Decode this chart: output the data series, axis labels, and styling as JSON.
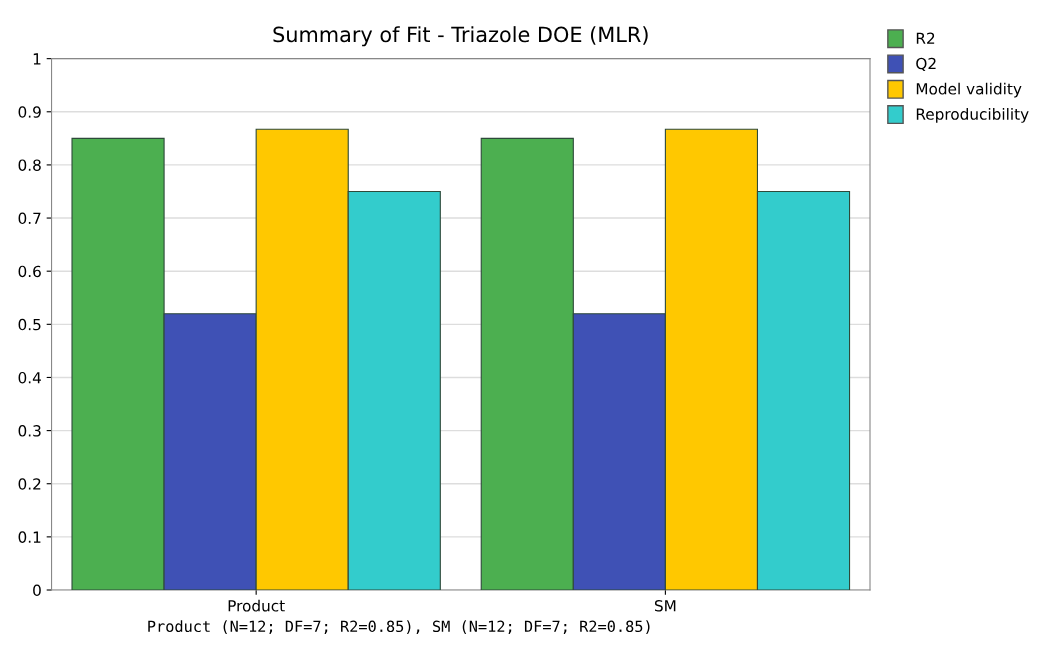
{
  "chart_data": {
    "type": "bar",
    "title": "Summary of Fit - Triazole DOE (MLR)",
    "categories": [
      "Product",
      "SM"
    ],
    "series": [
      {
        "name": "R2",
        "color": "#4caf50",
        "values": [
          0.85,
          0.85
        ]
      },
      {
        "name": "Q2",
        "color": "#3f51b5",
        "values": [
          0.52,
          0.52
        ]
      },
      {
        "name": "Model validity",
        "color": "#ffc800",
        "values": [
          0.867,
          0.867
        ]
      },
      {
        "name": "Reproducibility",
        "color": "#33cccc",
        "values": [
          0.75,
          0.75
        ]
      }
    ],
    "ylim": [
      0,
      1
    ],
    "yticks": [
      0,
      0.1,
      0.2,
      0.3,
      0.4,
      0.5,
      0.6,
      0.7,
      0.8,
      0.9,
      1
    ],
    "grid": "y",
    "legend": "top right",
    "annotations": [
      "Product (N=12; DF=7; R2=0.85), SM (N=12; DF=7; R2=0.85)"
    ]
  }
}
